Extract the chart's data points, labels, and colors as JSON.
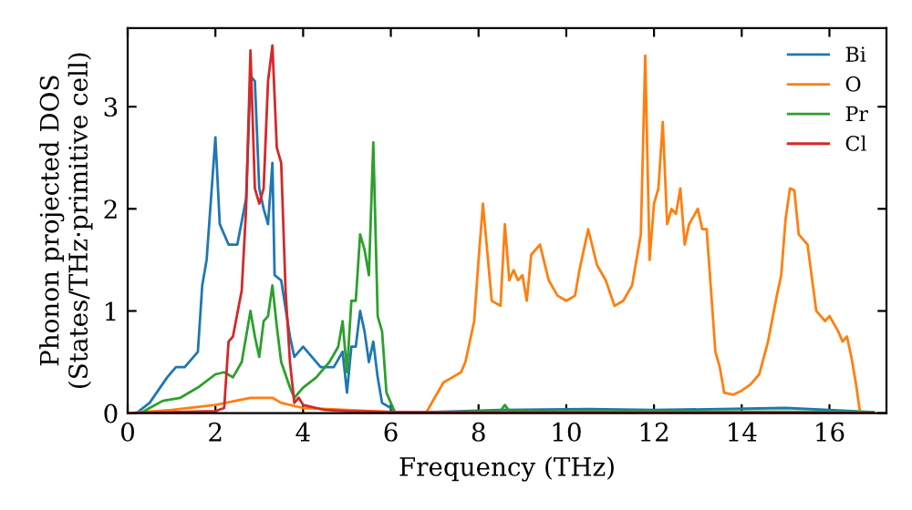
{
  "chart_data": {
    "type": "line",
    "xlabel": "Frequency (THz)",
    "ylabel": "Phonon projected DOS\n(States/THz·primitive cell)",
    "xlim": [
      0,
      17.3
    ],
    "ylim": [
      0,
      3.77
    ],
    "xticks": [
      0,
      2,
      4,
      6,
      8,
      10,
      12,
      14,
      16
    ],
    "yticks": [
      0,
      1,
      2,
      3
    ],
    "grid": false,
    "legend": "top right",
    "marker": "none",
    "line_style": "solid",
    "series": [
      {
        "name": "Bi",
        "color": "#1f77b4",
        "x": [
          0.2,
          0.5,
          0.9,
          1.1,
          1.3,
          1.6,
          1.7,
          1.8,
          2.0,
          2.1,
          2.3,
          2.5,
          2.7,
          2.8,
          2.9,
          3.0,
          3.1,
          3.2,
          3.3,
          3.35,
          3.5,
          3.7,
          3.8,
          4.0,
          4.2,
          4.4,
          4.7,
          4.9,
          5.0,
          5.1,
          5.2,
          5.3,
          5.4,
          5.5,
          5.6,
          5.7,
          5.8,
          6.0,
          6.1,
          8.5,
          10.5,
          12.0,
          15.0,
          16.0,
          17.0
        ],
        "values": [
          0,
          0.1,
          0.35,
          0.45,
          0.45,
          0.6,
          1.25,
          1.5,
          2.7,
          1.85,
          1.65,
          1.65,
          2.1,
          3.3,
          3.25,
          2.2,
          2.0,
          1.85,
          2.45,
          1.35,
          1.3,
          0.75,
          0.55,
          0.65,
          0.55,
          0.45,
          0.45,
          0.6,
          0.2,
          0.65,
          0.65,
          1.0,
          0.8,
          0.5,
          0.7,
          0.35,
          0.1,
          0.05,
          0,
          0.03,
          0.04,
          0.03,
          0.05,
          0.03,
          0.01
        ]
      },
      {
        "name": "O",
        "color": "#ff7f0e",
        "x": [
          0,
          1,
          2,
          2.8,
          3.3,
          3.5,
          4,
          5,
          6,
          6.8,
          7.0,
          7.2,
          7.4,
          7.6,
          7.7,
          7.9,
          8.0,
          8.1,
          8.3,
          8.5,
          8.6,
          8.7,
          8.8,
          8.9,
          9.0,
          9.1,
          9.2,
          9.4,
          9.6,
          9.8,
          10.0,
          10.2,
          10.3,
          10.5,
          10.7,
          10.9,
          11.1,
          11.3,
          11.5,
          11.7,
          11.8,
          11.9,
          12.0,
          12.1,
          12.2,
          12.3,
          12.4,
          12.5,
          12.6,
          12.7,
          12.8,
          13.0,
          13.1,
          13.2,
          13.4,
          13.5,
          13.6,
          13.8,
          14.0,
          14.2,
          14.4,
          14.6,
          14.8,
          14.9,
          15.0,
          15.1,
          15.2,
          15.3,
          15.5,
          15.7,
          15.9,
          16.0,
          16.2,
          16.3,
          16.4,
          16.5,
          16.6,
          16.7
        ],
        "values": [
          0,
          0.03,
          0.08,
          0.15,
          0.15,
          0.1,
          0.05,
          0.03,
          0.01,
          0,
          0.15,
          0.3,
          0.35,
          0.4,
          0.5,
          0.9,
          1.5,
          2.05,
          1.1,
          1.05,
          1.85,
          1.3,
          1.4,
          1.3,
          1.35,
          1.1,
          1.55,
          1.65,
          1.3,
          1.15,
          1.1,
          1.15,
          1.4,
          1.8,
          1.45,
          1.3,
          1.05,
          1.1,
          1.25,
          1.75,
          3.5,
          1.5,
          2.05,
          2.2,
          2.85,
          1.85,
          2.0,
          1.95,
          2.2,
          1.65,
          1.85,
          2.0,
          1.8,
          1.8,
          0.6,
          0.45,
          0.2,
          0.18,
          0.22,
          0.28,
          0.38,
          0.7,
          1.15,
          1.35,
          1.9,
          2.2,
          2.18,
          1.75,
          1.65,
          1.0,
          0.9,
          0.95,
          0.8,
          0.7,
          0.75,
          0.55,
          0.3,
          0
        ]
      },
      {
        "name": "Pr",
        "color": "#2ca02c",
        "x": [
          0.3,
          0.5,
          0.8,
          1.2,
          1.6,
          2.0,
          2.2,
          2.4,
          2.6,
          2.8,
          2.9,
          3.0,
          3.1,
          3.2,
          3.3,
          3.4,
          3.5,
          3.7,
          3.8,
          4.0,
          4.3,
          4.6,
          4.8,
          4.9,
          5.0,
          5.1,
          5.2,
          5.3,
          5.4,
          5.5,
          5.6,
          5.7,
          5.8,
          5.9,
          6.0,
          6.1,
          8.5,
          8.6,
          8.7,
          17.0
        ],
        "values": [
          0,
          0.05,
          0.12,
          0.15,
          0.25,
          0.38,
          0.4,
          0.35,
          0.5,
          1.0,
          0.75,
          0.55,
          0.9,
          0.95,
          1.25,
          0.85,
          0.5,
          0.25,
          0.15,
          0.25,
          0.35,
          0.5,
          0.65,
          0.9,
          0.4,
          1.1,
          1.1,
          1.75,
          1.6,
          1.35,
          2.65,
          0.95,
          0.8,
          0.2,
          0.1,
          0,
          0.02,
          0.08,
          0.02,
          0.01
        ]
      },
      {
        "name": "Cl",
        "color": "#d62728",
        "x": [
          0,
          2.0,
          2.2,
          2.3,
          2.4,
          2.6,
          2.7,
          2.8,
          2.9,
          3.0,
          3.1,
          3.2,
          3.3,
          3.4,
          3.5,
          3.6,
          3.7,
          3.8,
          3.9,
          4.0,
          4.5,
          5.0,
          6.0,
          17.0
        ],
        "values": [
          0,
          0.02,
          0.05,
          0.7,
          0.75,
          1.2,
          2.0,
          3.55,
          2.2,
          2.05,
          2.2,
          3.25,
          3.6,
          2.6,
          2.45,
          1.2,
          0.5,
          0.1,
          0.15,
          0.08,
          0.03,
          0.02,
          0.01,
          0
        ]
      }
    ]
  }
}
